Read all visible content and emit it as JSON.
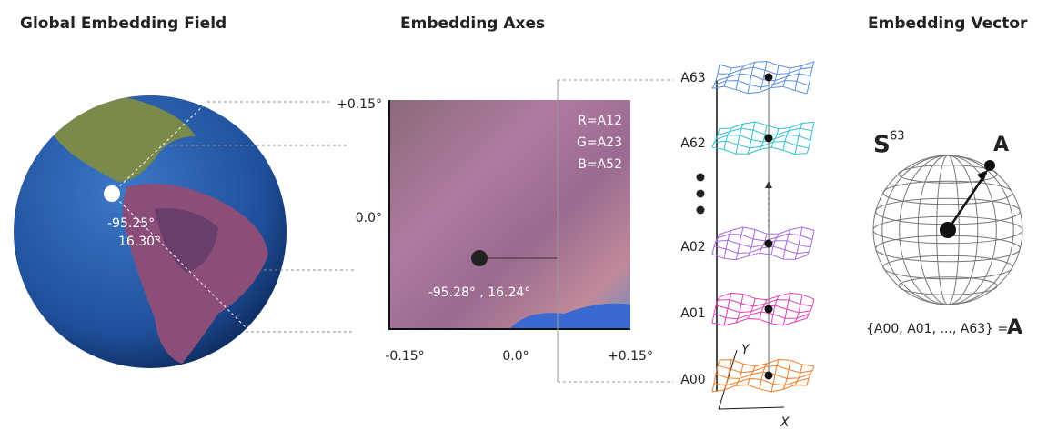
{
  "globe": {
    "title": "Global Embedding Field",
    "coord_lines": [
      "-95.25°",
      "16.30°"
    ]
  },
  "axes_panel": {
    "title": "Embedding Axes",
    "y_labels": [
      "+0.15°",
      "0.0°"
    ],
    "x_labels": [
      "-0.15°",
      "0.0°",
      "+0.15°"
    ],
    "rgb": [
      "R=A12",
      "G=A23",
      "B=A52"
    ],
    "point_label": "-95.28° , 16.24°"
  },
  "stack": {
    "layers": [
      "A63",
      "A62",
      "A02",
      "A01",
      "A00"
    ],
    "axis_x": "X",
    "axis_y": "Y"
  },
  "vector": {
    "title": "Embedding Vector",
    "sphere": "S",
    "sphere_exp": "63",
    "point": "A",
    "equation": "{A00, A01, ..., A63} =",
    "equation_rhs": "A"
  }
}
